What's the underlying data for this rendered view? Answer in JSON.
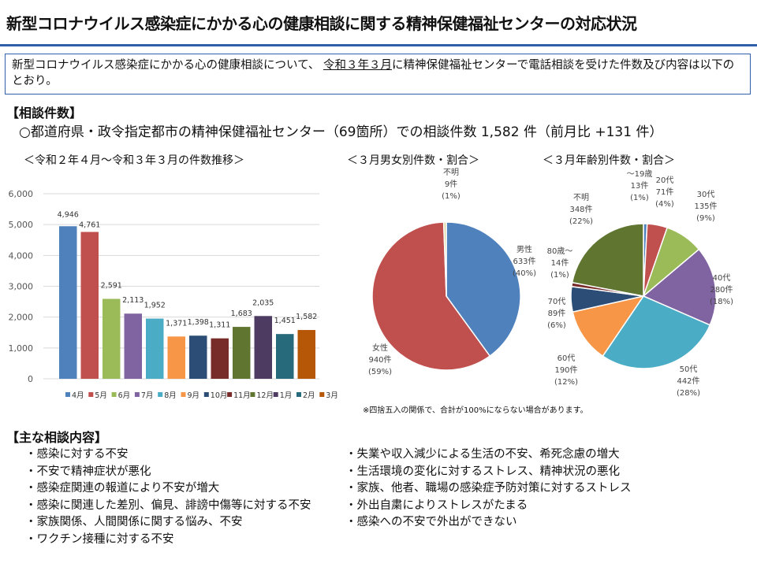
{
  "title": "新型コロナウイルス感染症にかかる心の健康相談に関する精神保健福祉センターの対応状況",
  "intro": {
    "before": "新型コロナウイルス感染症にかかる心の健康相談について、 ",
    "underlined": "令和３年３月",
    "after": "に精神保健福祉センターで電話相談を受けた件数及び内容は以下のとおり。"
  },
  "counts_heading": "【相談件数】",
  "summary": "○都道府県・政令指定都市の精神保健福祉センター（69箇所）での相談件数 1,582 件（前月比 +131 件）",
  "note": "※四捨五入の関係で、合計が100%にならない場合があります。",
  "content_heading": "【主な相談内容】",
  "contents_left": [
    "・感染に対する不安",
    "・不安で精神症状が悪化",
    "・感染症関連の報道により不安が増大",
    "・感染に関連した差別、偏見、誹謗中傷等に対する不安",
    "・家族関係、人間関係に関する悩み、不安",
    "・ワクチン接種に対する不安"
  ],
  "contents_right": [
    "・失業や収入減少による生活の不安、希死念慮の増大",
    "・生活環境の変化に対するストレス、精神状況の悪化",
    "・家族、他者、職場の感染症予防対策に対するストレス",
    "・外出自粛によりストレスがたまる",
    "・感染への不安で外出ができない"
  ],
  "chart_data": [
    {
      "type": "bar",
      "title": "＜令和２年４月～令和３年３月の件数推移＞",
      "categories": [
        "4月",
        "5月",
        "6月",
        "7月",
        "8月",
        "9月",
        "10月",
        "11月",
        "12月",
        "1月",
        "2月",
        "3月"
      ],
      "values": [
        4946,
        4761,
        2591,
        2113,
        1952,
        1371,
        1398,
        1311,
        1683,
        2035,
        1451,
        1582
      ],
      "data_labels": [
        "4,946",
        "4,761",
        "2,591",
        "2,113",
        "1,952",
        "1,371",
        "1,398",
        "1,311",
        "1,683",
        "2,035",
        "1,451",
        "1,582"
      ],
      "colors": [
        "#4f81bd",
        "#c0504d",
        "#9bbb59",
        "#8064a2",
        "#4bacc6",
        "#f79646",
        "#2c4d75",
        "#772c2a",
        "#5f7530",
        "#4d3b62",
        "#276a7c",
        "#b65708"
      ],
      "ylim": [
        0,
        6000
      ],
      "yticks": [
        "0",
        "1,000",
        "2,000",
        "3,000",
        "4,000",
        "5,000",
        "6,000"
      ],
      "grid": true,
      "legend": "bottom"
    },
    {
      "type": "pie",
      "title": "＜３月男女別件数・割合＞",
      "slices": [
        {
          "label": "男性",
          "count": "633件",
          "pct": "(40%)",
          "value": 633,
          "color": "#4f81bd"
        },
        {
          "label": "女性",
          "count": "940件",
          "pct": "(59%)",
          "value": 940,
          "color": "#c0504d"
        },
        {
          "label": "不明",
          "count": "9件",
          "pct": "(1%)",
          "value": 9,
          "color": "#d8d8a0"
        }
      ]
    },
    {
      "type": "pie",
      "title": "＜３月年齢別件数・割合＞",
      "slices": [
        {
          "label": "～19歳",
          "count": "13件",
          "pct": "(1%)",
          "value": 13,
          "color": "#4f81bd"
        },
        {
          "label": "20代",
          "count": "71件",
          "pct": "(4%)",
          "value": 71,
          "color": "#c0504d"
        },
        {
          "label": "30代",
          "count": "135件",
          "pct": "(9%)",
          "value": 135,
          "color": "#9bbb59"
        },
        {
          "label": "40代",
          "count": "280件",
          "pct": "(18%)",
          "value": 280,
          "color": "#8064a2"
        },
        {
          "label": "50代",
          "count": "442件",
          "pct": "(28%)",
          "value": 442,
          "color": "#4bacc6"
        },
        {
          "label": "60代",
          "count": "190件",
          "pct": "(12%)",
          "value": 190,
          "color": "#f79646"
        },
        {
          "label": "70代",
          "count": "89件",
          "pct": "(6%)",
          "value": 89,
          "color": "#2c4d75"
        },
        {
          "label": "80歳～",
          "count": "14件",
          "pct": "(1%)",
          "value": 14,
          "color": "#772c2a"
        },
        {
          "label": "不明",
          "count": "348件",
          "pct": "(22%)",
          "value": 348,
          "color": "#5f7530"
        }
      ]
    }
  ]
}
